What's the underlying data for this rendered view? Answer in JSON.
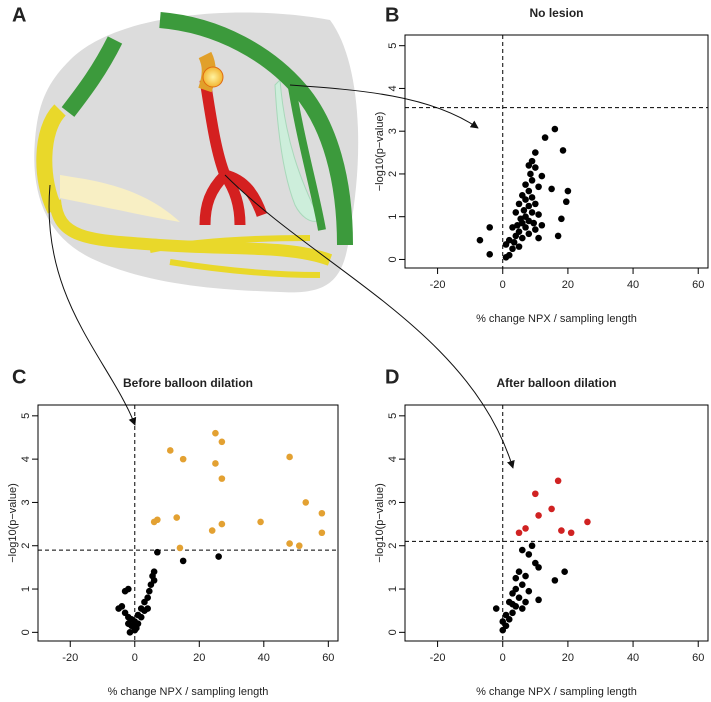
{
  "diagram": {
    "label": "A"
  },
  "chart_data": [
    {
      "type": "scatter",
      "panel": "B",
      "title": "No lesion",
      "x_label": "% change NPX / sampling length",
      "y_label": "−log10(p−value)",
      "xlim": [
        -30,
        63
      ],
      "ylim": [
        -0.2,
        5.25
      ],
      "xticks": [
        -20,
        0,
        20,
        40,
        60
      ],
      "yticks": [
        0,
        1,
        2,
        3,
        4,
        5
      ],
      "hline": 3.55,
      "vline": 0,
      "series": [
        {
          "color": "#000000",
          "x": [
            16,
            13,
            18.5,
            10,
            9,
            8,
            10,
            8.5,
            12,
            9,
            7,
            11,
            15,
            8,
            20,
            19.5,
            6,
            9,
            7,
            10,
            5,
            8,
            6.5,
            9,
            4,
            11,
            7,
            5.5,
            18,
            8,
            6,
            9.5,
            4.5,
            12,
            7,
            3,
            10,
            5,
            8,
            -4,
            4,
            6,
            17,
            11,
            2,
            3.5,
            -7,
            1,
            5,
            3,
            -4,
            2,
            1
          ],
          "values": [
            3.05,
            2.85,
            2.55,
            2.5,
            2.3,
            2.2,
            2.15,
            2.0,
            1.95,
            1.85,
            1.75,
            1.7,
            1.65,
            1.6,
            1.6,
            1.35,
            1.5,
            1.45,
            1.4,
            1.3,
            1.3,
            1.25,
            1.15,
            1.1,
            1.1,
            1.05,
            1.0,
            0.95,
            0.95,
            0.9,
            0.85,
            0.85,
            0.8,
            0.8,
            0.75,
            0.75,
            0.7,
            0.65,
            0.6,
            0.75,
            0.55,
            0.5,
            0.55,
            0.5,
            0.45,
            0.4,
            0.45,
            0.35,
            0.3,
            0.25,
            0.12,
            0.1,
            0.05
          ]
        }
      ]
    },
    {
      "type": "scatter",
      "panel": "C",
      "title": "Before balloon dilation",
      "x_label": "% change NPX / sampling length",
      "y_label": "−log10(p−value)",
      "xlim": [
        -30,
        63
      ],
      "ylim": [
        -0.2,
        5.25
      ],
      "xticks": [
        -20,
        0,
        20,
        40,
        60
      ],
      "yticks": [
        0,
        1,
        2,
        3,
        4,
        5
      ],
      "hline": 1.9,
      "vline": 0,
      "series": [
        {
          "color": "#000000",
          "x": [
            7,
            6,
            5.5,
            6,
            5,
            4.5,
            -2,
            -3,
            4,
            3,
            -4,
            2,
            -5,
            3,
            -3,
            1,
            2,
            -2,
            -1,
            0,
            1,
            -1,
            0.5,
            0,
            -1.5,
            15,
            26,
            4,
            -2
          ],
          "values": [
            1.85,
            1.4,
            1.3,
            1.2,
            1.1,
            0.95,
            1.0,
            0.95,
            0.8,
            0.7,
            0.6,
            0.55,
            0.55,
            0.5,
            0.45,
            0.4,
            0.35,
            0.35,
            0.3,
            0.25,
            0.2,
            0.15,
            0.1,
            0.05,
            0.0,
            1.65,
            1.75,
            0.55,
            0.2
          ]
        },
        {
          "color": "#e3a132",
          "x": [
            25,
            27,
            11,
            48,
            15,
            25,
            27,
            53,
            58,
            6,
            7,
            13,
            39,
            27,
            24,
            58,
            14,
            48,
            51
          ],
          "values": [
            4.6,
            4.4,
            4.2,
            4.05,
            4.0,
            3.9,
            3.55,
            3.0,
            2.75,
            2.55,
            2.6,
            2.65,
            2.55,
            2.5,
            2.35,
            2.3,
            1.95,
            2.05,
            2.0
          ]
        }
      ]
    },
    {
      "type": "scatter",
      "panel": "D",
      "title": "After balloon dilation",
      "x_label": "% change NPX / sampling length",
      "y_label": "−log10(p−value)",
      "xlim": [
        -30,
        63
      ],
      "ylim": [
        -0.2,
        5.25
      ],
      "xticks": [
        -20,
        0,
        20,
        40,
        60
      ],
      "yticks": [
        0,
        1,
        2,
        3,
        4,
        5
      ],
      "hline": 2.1,
      "vline": 0,
      "series": [
        {
          "color": "#000000",
          "x": [
            9,
            6,
            8,
            10,
            5,
            11,
            19,
            7,
            4,
            16,
            6,
            4,
            8,
            3,
            11,
            5,
            2,
            4,
            6,
            3,
            -2,
            1,
            2,
            0,
            1,
            0,
            3,
            7
          ],
          "values": [
            2.0,
            1.9,
            1.8,
            1.6,
            1.4,
            1.5,
            1.4,
            1.3,
            1.25,
            1.2,
            1.1,
            1.0,
            0.95,
            0.9,
            0.75,
            0.8,
            0.7,
            0.6,
            0.55,
            0.45,
            0.55,
            0.4,
            0.3,
            0.25,
            0.15,
            0.05,
            0.65,
            0.7
          ]
        },
        {
          "color": "#d02222",
          "x": [
            17,
            10,
            15,
            11,
            26,
            18,
            21,
            7,
            5
          ],
          "values": [
            3.5,
            3.2,
            2.85,
            2.7,
            2.55,
            2.35,
            2.3,
            2.4,
            2.3
          ]
        }
      ]
    }
  ]
}
